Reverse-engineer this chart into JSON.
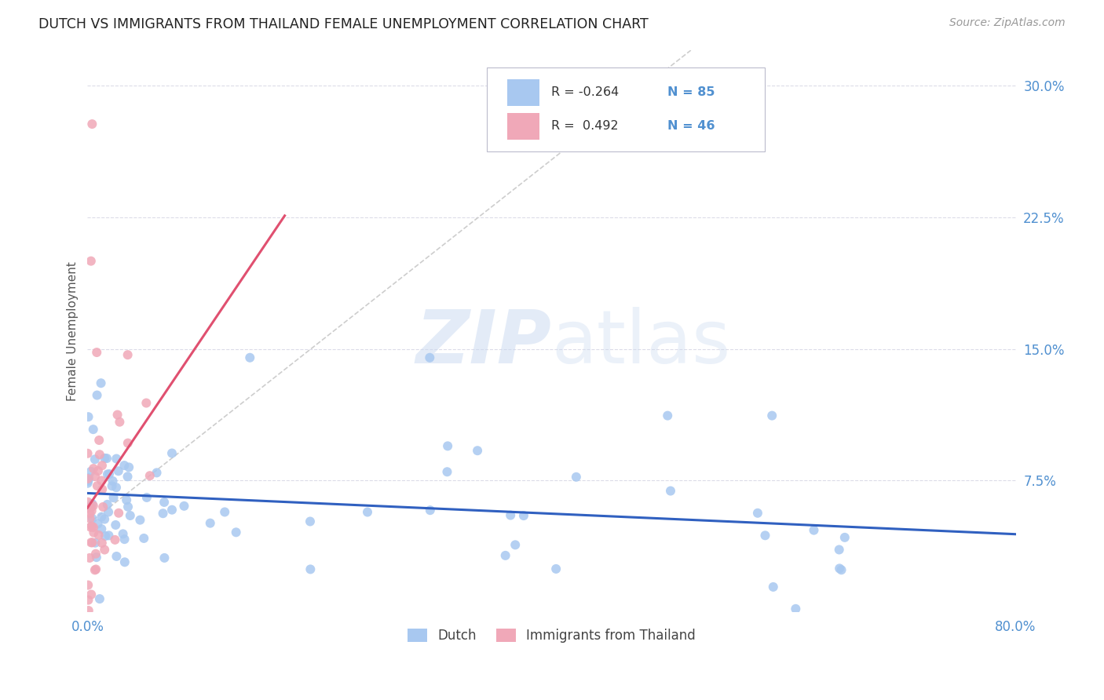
{
  "title": "DUTCH VS IMMIGRANTS FROM THAILAND FEMALE UNEMPLOYMENT CORRELATION CHART",
  "source": "Source: ZipAtlas.com",
  "ylabel": "Female Unemployment",
  "xlim": [
    0.0,
    0.8
  ],
  "ylim": [
    0.0,
    0.32
  ],
  "xtick_positions": [
    0.0,
    0.1,
    0.2,
    0.3,
    0.4,
    0.5,
    0.6,
    0.7,
    0.8
  ],
  "xticklabels": [
    "0.0%",
    "",
    "",
    "",
    "",
    "",
    "",
    "",
    "80.0%"
  ],
  "ytick_positions": [
    0.075,
    0.15,
    0.225,
    0.3
  ],
  "yticklabels": [
    "7.5%",
    "15.0%",
    "22.5%",
    "30.0%"
  ],
  "legend_r_dutch": "R = -0.264",
  "legend_n_dutch": "N = 85",
  "legend_r_thai": "R =  0.492",
  "legend_n_thai": "N = 46",
  "dutch_color": "#A8C8F0",
  "thai_color": "#F0A8B8",
  "dutch_line_color": "#3060C0",
  "thai_line_color": "#E05070",
  "diag_line_color": "#C8C8C8",
  "watermark_color": "#C8D8F0",
  "background_color": "#FFFFFF",
  "grid_color": "#DCDCE8",
  "tick_color": "#5090D0",
  "title_color": "#222222",
  "source_color": "#999999",
  "ylabel_color": "#555555"
}
